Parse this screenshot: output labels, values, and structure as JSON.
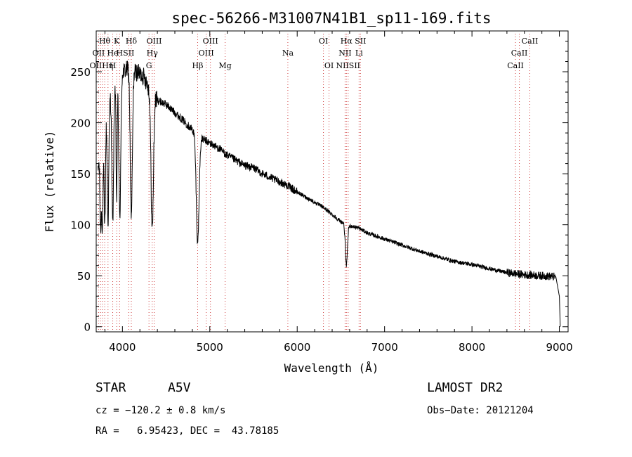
{
  "chart_data": {
    "type": "line",
    "title": "spec-56266-M31007N41B1_sp11-169.fits",
    "xlabel": "Wavelength (Å)",
    "ylabel": "Flux (relative)",
    "xlim": [
      3700,
      9100
    ],
    "ylim": [
      -5,
      290
    ],
    "xticks": [
      4000,
      5000,
      6000,
      7000,
      8000,
      9000
    ],
    "yticks": [
      0,
      50,
      100,
      150,
      200,
      250
    ],
    "continuum": [
      [
        3720,
        150
      ],
      [
        3750,
        190
      ],
      [
        3800,
        210
      ],
      [
        3850,
        225
      ],
      [
        3900,
        235
      ],
      [
        3950,
        245
      ],
      [
        4000,
        250
      ],
      [
        4050,
        252
      ],
      [
        4100,
        252
      ],
      [
        4150,
        250
      ],
      [
        4200,
        248
      ],
      [
        4250,
        245
      ],
      [
        4300,
        235
      ],
      [
        4400,
        222
      ],
      [
        4500,
        218
      ],
      [
        4600,
        210
      ],
      [
        4700,
        202
      ],
      [
        4800,
        193
      ],
      [
        4900,
        185
      ],
      [
        5000,
        180
      ],
      [
        5100,
        175
      ],
      [
        5200,
        168
      ],
      [
        5300,
        163
      ],
      [
        5400,
        158
      ],
      [
        5500,
        156
      ],
      [
        5600,
        150
      ],
      [
        5700,
        146
      ],
      [
        5800,
        142
      ],
      [
        5900,
        138
      ],
      [
        6000,
        132
      ],
      [
        6100,
        127
      ],
      [
        6200,
        122
      ],
      [
        6300,
        117
      ],
      [
        6400,
        110
      ],
      [
        6500,
        103
      ],
      [
        6600,
        99
      ],
      [
        6700,
        97
      ],
      [
        6800,
        92
      ],
      [
        6900,
        89
      ],
      [
        7000,
        86
      ],
      [
        7200,
        80
      ],
      [
        7400,
        74
      ],
      [
        7600,
        69
      ],
      [
        7800,
        64
      ],
      [
        8000,
        61
      ],
      [
        8200,
        57
      ],
      [
        8400,
        53
      ],
      [
        8600,
        51
      ],
      [
        8800,
        50
      ],
      [
        8960,
        49
      ],
      [
        9000,
        30
      ],
      [
        9010,
        0
      ]
    ],
    "absorption": [
      {
        "center": 3750,
        "depth": 90,
        "width": 8
      },
      {
        "center": 3771,
        "depth": 100,
        "width": 8
      },
      {
        "center": 3798,
        "depth": 110,
        "width": 8
      },
      {
        "center": 3835,
        "depth": 120,
        "width": 9
      },
      {
        "center": 3889,
        "depth": 130,
        "width": 10
      },
      {
        "center": 3933,
        "depth": 120,
        "width": 6
      },
      {
        "center": 3970,
        "depth": 140,
        "width": 11
      },
      {
        "center": 4102,
        "depth": 145,
        "width": 12
      },
      {
        "center": 4341,
        "depth": 135,
        "width": 14
      },
      {
        "center": 4861,
        "depth": 105,
        "width": 16
      },
      {
        "center": 6563,
        "depth": 40,
        "width": 12
      }
    ],
    "lines": {
      "row1": [
        {
          "label": "Hθ",
          "wl": 3797
        },
        {
          "label": "K",
          "wl": 3934
        },
        {
          "label": "Hδ",
          "wl": 4102
        },
        {
          "label": "OIII",
          "wl": 4363
        },
        {
          "label": "OIII",
          "wl": 5007
        },
        {
          "label": "OI",
          "wl": 6300
        },
        {
          "label": "Hα",
          "wl": 6563
        },
        {
          "label": "SII",
          "wl": 6724
        },
        {
          "label": "CaII",
          "wl": 8662
        }
      ],
      "row2": [
        {
          "label": "OII",
          "wl": 3727
        },
        {
          "label": "He",
          "wl": 3889
        },
        {
          "label": "H",
          "wl": 3968
        },
        {
          "label": "SII",
          "wl": 4072
        },
        {
          "label": "Hγ",
          "wl": 4341
        },
        {
          "label": "OIII",
          "wl": 4959
        },
        {
          "label": "Na",
          "wl": 5893
        },
        {
          "label": "NII",
          "wl": 6548
        },
        {
          "label": "Li",
          "wl": 6708
        },
        {
          "label": "CaII",
          "wl": 8542
        }
      ],
      "row3": [
        {
          "label": "OIIHη",
          "wl": 3760
        },
        {
          "label": "H",
          "wl": 3889
        },
        {
          "label": "G",
          "wl": 4304
        },
        {
          "label": "Hβ",
          "wl": 4861
        },
        {
          "label": "Mg",
          "wl": 5175
        },
        {
          "label": "OI",
          "wl": 6364
        },
        {
          "label": "NIISII",
          "wl": 6583
        },
        {
          "label": "CaII",
          "wl": 8498
        }
      ],
      "dotted_positions": [
        3727,
        3750,
        3771,
        3797,
        3835,
        3889,
        3934,
        3968,
        4072,
        4102,
        4304,
        4341,
        4363,
        4861,
        4959,
        5007,
        5175,
        5893,
        6300,
        6364,
        6548,
        6563,
        6583,
        6708,
        6724,
        8498,
        8542,
        8662
      ]
    }
  },
  "info": {
    "object_type": "STAR",
    "subclass": "A5V",
    "survey": "LAMOST DR2",
    "cz": "cz = −120.2 ± 0.8 km/s",
    "obs_date": "Obs−Date: 20121204",
    "coords": "RA =   6.95423, DEC =  43.78185"
  }
}
